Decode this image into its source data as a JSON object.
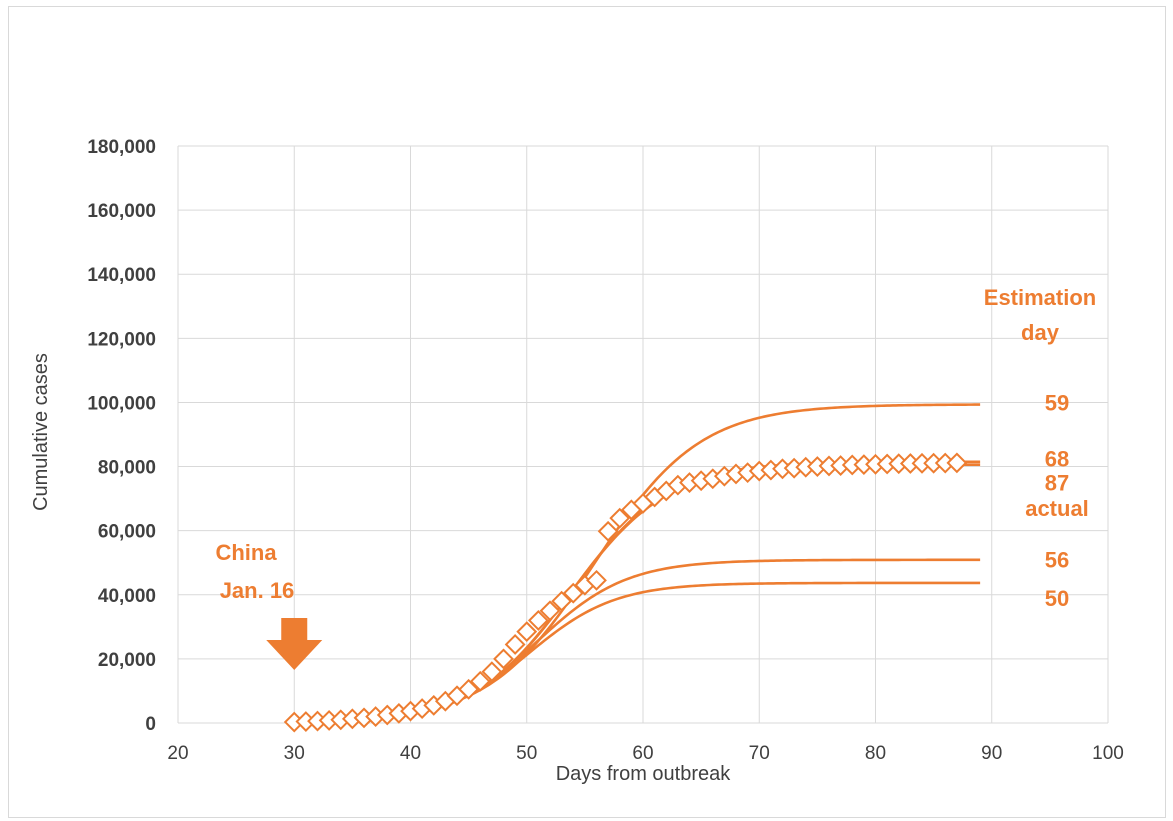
{
  "chart_data": {
    "type": "line",
    "xlabel": "Days from outbreak",
    "ylabel": "Cumulative cases",
    "xlim": [
      20,
      100
    ],
    "ylim": [
      0,
      180000
    ],
    "x_ticks": [
      "20",
      "30",
      "40",
      "50",
      "60",
      "70",
      "80",
      "90",
      "100"
    ],
    "y_ticks": [
      "0",
      "20,000",
      "40,000",
      "60,000",
      "80,000",
      "100,000",
      "120,000",
      "140,000",
      "160,000",
      "180,000"
    ],
    "grid": true,
    "color": "#ed7d31",
    "annotations": {
      "legend_title_line1": "Estimation",
      "legend_title_line2": "day",
      "event_line1": "China",
      "event_line2": "Jan. 16"
    },
    "event_arrow_x": 30,
    "actual_series": {
      "name": "actual",
      "marker": "diamond",
      "x": [
        30,
        31,
        32,
        33,
        34,
        35,
        36,
        37,
        38,
        39,
        40,
        41,
        42,
        43,
        44,
        45,
        46,
        47,
        48,
        49,
        50,
        51,
        52,
        53,
        54,
        55,
        56,
        57,
        58,
        59,
        60,
        61,
        62,
        63,
        64,
        65,
        66,
        67,
        68,
        69,
        70,
        71,
        72,
        73,
        74,
        75,
        76,
        77,
        78,
        79,
        80,
        81,
        82,
        83,
        84,
        85,
        86,
        87
      ],
      "y": [
        300,
        450,
        600,
        800,
        1000,
        1300,
        1600,
        2000,
        2500,
        3000,
        3700,
        4500,
        5500,
        6800,
        8500,
        10500,
        13000,
        16000,
        20000,
        24500,
        28500,
        32000,
        35000,
        38000,
        40500,
        43000,
        44500,
        59800,
        63900,
        66500,
        68500,
        70500,
        72400,
        74200,
        75000,
        75600,
        76200,
        77000,
        77700,
        78100,
        78600,
        78900,
        79300,
        79500,
        79800,
        80000,
        80200,
        80300,
        80500,
        80600,
        80700,
        80800,
        80900,
        80950,
        81000,
        81050,
        81100,
        81150
      ]
    },
    "fits": [
      {
        "name": "59",
        "asymptote": 99400,
        "midpoint": 55.8,
        "rate": 0.22
      },
      {
        "name": "68",
        "asymptote": 81500,
        "midpoint": 53.8,
        "rate": 0.24
      },
      {
        "name": "87",
        "asymptote": 80600,
        "midpoint": 53.7,
        "rate": 0.24
      },
      {
        "name": "56",
        "asymptote": 50900,
        "midpoint": 50.9,
        "rate": 0.26
      },
      {
        "name": "50",
        "asymptote": 43700,
        "midpoint": 50.2,
        "rate": 0.27
      }
    ],
    "fit_x_range": [
      30,
      89
    ],
    "series_labels": [
      {
        "text": "59",
        "y": 100000
      },
      {
        "text": "68",
        "y": 82500
      },
      {
        "text": "87",
        "y": 75000
      },
      {
        "text": "actual",
        "y": 67000
      },
      {
        "text": "56",
        "y": 51000
      },
      {
        "text": "50",
        "y": 39000
      }
    ]
  }
}
